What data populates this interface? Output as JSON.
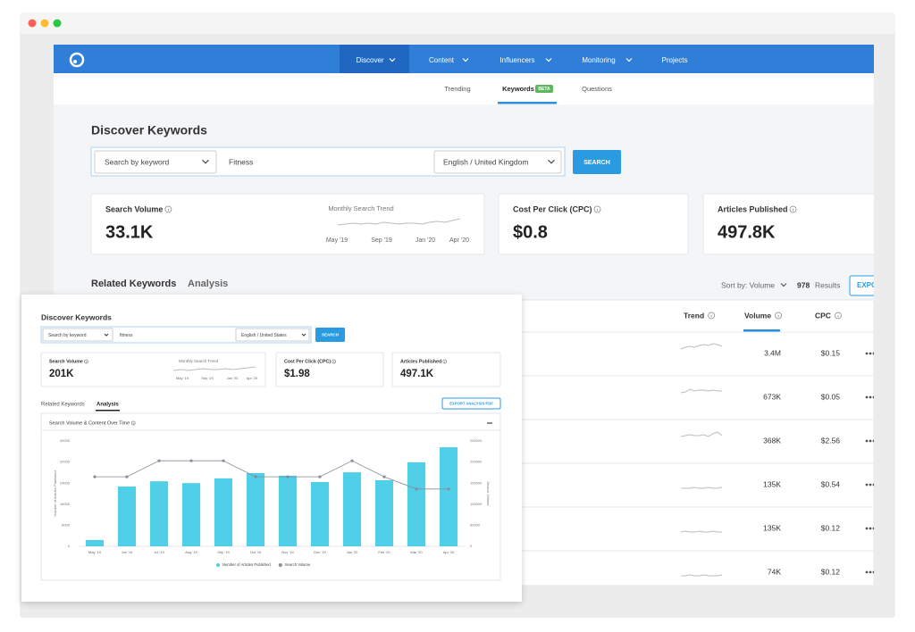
{
  "nav": {
    "items": [
      "Discover",
      "Content",
      "Influencers",
      "Monitoring",
      "Projects"
    ]
  },
  "subnav": {
    "items": [
      "Trending",
      "Keywords",
      "Questions"
    ],
    "badge": "BETA"
  },
  "back": {
    "title": "Discover Keywords",
    "search": {
      "mode": "Search by keyword",
      "query": "Fitness",
      "locale": "English / United Kingdom",
      "button": "SEARCH"
    },
    "cards": [
      {
        "label": "Search Volume",
        "value": "33.1K",
        "trend_label": "Monthly Search Trend",
        "trend_ticks": [
          "May '19",
          "Sep '19",
          "Jan '20",
          "Apr '20"
        ]
      },
      {
        "label": "Cost Per Click (CPC)",
        "value": "$0.8"
      },
      {
        "label": "Articles Published",
        "value": "497.8K"
      }
    ],
    "tabs": [
      "Related Keywords",
      "Analysis"
    ],
    "sort": "Sort by: Volume",
    "results_count": "978",
    "results_label": "Results",
    "export": "EXPO",
    "table": {
      "columns": [
        "Trend",
        "Volume",
        "CPC"
      ],
      "rows": [
        [
          "3.4M",
          "$0.15"
        ],
        [
          "673K",
          "$0.05"
        ],
        [
          "368K",
          "$2.56"
        ],
        [
          "135K",
          "$0.54"
        ],
        [
          "135K",
          "$0.12"
        ],
        [
          "74K",
          "$0.12"
        ]
      ]
    }
  },
  "front": {
    "title": "Discover Keywords",
    "search": {
      "mode": "Search by keyword",
      "query": "fitness",
      "locale": "English / United States",
      "button": "SEARCH"
    },
    "cards": [
      {
        "label": "Search Volume",
        "value": "201K",
        "trend_label": "Monthly Search Trend",
        "trend_ticks": [
          "May '19",
          "Sep '19",
          "Jan '20",
          "Apr '20"
        ]
      },
      {
        "label": "Cost Per Click (CPC)",
        "value": "$1.98"
      },
      {
        "label": "Articles Published",
        "value": "497.1K"
      }
    ],
    "tabs": [
      "Related Keywords",
      "Analysis"
    ],
    "export": "EXPORT ANALYSIS PDF"
  },
  "chart_data": {
    "type": "bar",
    "title": "Search Volume & Content Over Time",
    "y_label": "Number of Articles Published",
    "y2_label": "Search Volume",
    "categories": [
      "May '19",
      "Jun '19",
      "Jul '19",
      "Aug '19",
      "Sep '19",
      "Oct '19",
      "Nov '19",
      "Dec '19",
      "Jan '20",
      "Feb '20",
      "Mar '20",
      "Apr '20"
    ],
    "series": [
      {
        "name": "Number of Articles Published",
        "type": "bar",
        "color": "#4fcfe8",
        "values": [
          2400,
          22700,
          24700,
          24000,
          25800,
          27800,
          26800,
          24400,
          28100,
          25100,
          31900,
          37600
        ]
      },
      {
        "name": "Search Volume",
        "type": "line",
        "axis": "y2",
        "color": "#868d96",
        "values": [
          165000,
          165000,
          203000,
          203000,
          203000,
          165000,
          165000,
          165000,
          203000,
          165000,
          136000,
          136000
        ]
      }
    ],
    "ylim": [
      0,
      40000
    ],
    "yticks": [
      0,
      8000,
      16000,
      24000,
      32000,
      40000
    ],
    "y2lim": [
      0,
      250000
    ],
    "y2ticks": [
      0,
      50000,
      100000,
      150000,
      200000,
      250000
    ],
    "grid": false
  }
}
